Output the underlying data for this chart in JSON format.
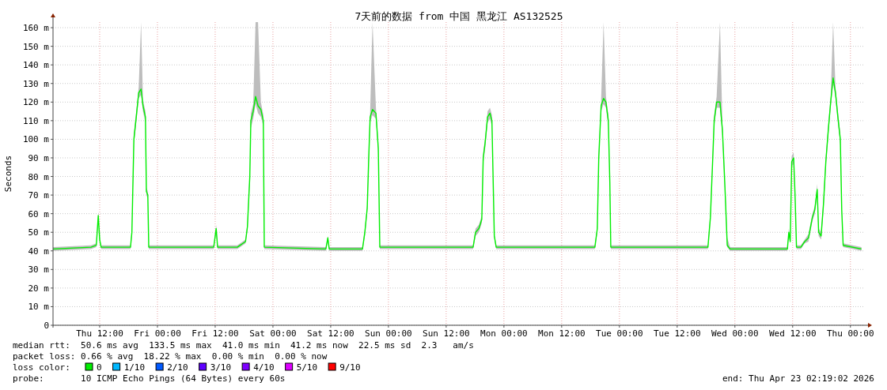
{
  "chart_data": {
    "type": "line",
    "title": "7天前的数据 from 中国 黑龙江 AS132525",
    "ylabel": "Seconds",
    "x": [
      "2026-04-16T02:18",
      "2026-04-16T10:12",
      "2026-04-16T11:18",
      "2026-04-16T11:42",
      "2026-04-16T12:00",
      "2026-04-16T12:18",
      "2026-04-16T16:00",
      "2026-04-16T18:24",
      "2026-04-16T18:42",
      "2026-04-16T19:06",
      "2026-04-16T19:36",
      "2026-04-16T20:06",
      "2026-04-16T20:36",
      "2026-04-16T21:00",
      "2026-04-16T21:30",
      "2026-04-16T21:42",
      "2026-04-16T22:00",
      "2026-04-16T22:12",
      "2026-04-17T11:42",
      "2026-04-17T12:12",
      "2026-04-17T12:30",
      "2026-04-17T16:36",
      "2026-04-17T18:18",
      "2026-04-17T18:42",
      "2026-04-17T19:12",
      "2026-04-17T19:24",
      "2026-04-17T19:54",
      "2026-04-17T20:24",
      "2026-04-17T20:54",
      "2026-04-17T21:30",
      "2026-04-17T22:00",
      "2026-04-17T22:12",
      "2026-04-18T11:00",
      "2026-04-18T11:24",
      "2026-04-18T11:42",
      "2026-04-18T18:36",
      "2026-04-18T19:06",
      "2026-04-18T19:36",
      "2026-04-18T19:54",
      "2026-04-18T20:12",
      "2026-04-18T20:42",
      "2026-04-18T21:24",
      "2026-04-18T21:54",
      "2026-04-18T22:12",
      "2026-04-19T17:36",
      "2026-04-19T18:06",
      "2026-04-19T18:48",
      "2026-04-19T19:24",
      "2026-04-19T19:42",
      "2026-04-19T20:06",
      "2026-04-19T20:36",
      "2026-04-19T21:06",
      "2026-04-19T21:30",
      "2026-04-19T22:00",
      "2026-04-19T22:24",
      "2026-04-20T18:54",
      "2026-04-20T19:24",
      "2026-04-20T19:42",
      "2026-04-20T20:12",
      "2026-04-20T20:42",
      "2026-04-20T21:12",
      "2026-04-20T21:42",
      "2026-04-20T22:00",
      "2026-04-20T22:12",
      "2026-04-21T18:24",
      "2026-04-21T18:54",
      "2026-04-21T19:24",
      "2026-04-21T19:42",
      "2026-04-21T20:12",
      "2026-04-21T20:54",
      "2026-04-21T21:24",
      "2026-04-21T21:42",
      "2026-04-21T22:00",
      "2026-04-21T22:24",
      "2026-04-21T23:00",
      "2026-04-22T05:06",
      "2026-04-22T10:54",
      "2026-04-22T11:12",
      "2026-04-22T11:30",
      "2026-04-22T11:48",
      "2026-04-22T12:12",
      "2026-04-22T12:30",
      "2026-04-22T12:48",
      "2026-04-22T13:42",
      "2026-04-22T14:30",
      "2026-04-22T15:18",
      "2026-04-22T16:06",
      "2026-04-22T16:36",
      "2026-04-22T17:06",
      "2026-04-22T17:24",
      "2026-04-22T17:54",
      "2026-04-22T18:24",
      "2026-04-22T18:54",
      "2026-04-22T19:24",
      "2026-04-22T19:54",
      "2026-04-22T20:24",
      "2026-04-22T20:54",
      "2026-04-22T21:24",
      "2026-04-22T21:54",
      "2026-04-22T22:12",
      "2026-04-22T22:30",
      "2026-04-23T02:18"
    ],
    "series": [
      {
        "name": "0",
        "color": "#00ee00",
        "values": [
          41,
          42,
          43,
          59,
          46,
          42,
          42,
          42,
          50,
          100,
          112,
          125,
          127,
          118,
          112,
          72,
          70,
          42,
          42,
          52,
          42,
          42,
          45,
          53,
          80,
          110,
          115,
          123,
          118,
          116,
          110,
          42,
          41,
          47,
          41,
          41,
          50,
          63,
          90,
          112,
          116,
          114,
          95,
          42,
          42,
          50,
          52,
          57,
          90,
          98,
          112,
          114,
          110,
          48,
          42,
          42,
          52,
          90,
          118,
          122,
          120,
          110,
          77,
          42,
          42,
          58,
          90,
          110,
          120,
          120,
          105,
          88,
          70,
          43,
          41,
          41,
          41,
          50,
          45,
          88,
          90,
          70,
          42,
          42,
          45,
          47,
          58,
          62,
          73,
          50,
          48,
          65,
          88,
          105,
          120,
          133,
          125,
          112,
          100,
          62,
          43,
          41
        ],
        "lower": [
          40,
          41,
          42,
          57,
          45,
          41,
          41,
          41,
          48,
          97,
          109,
          122,
          124,
          115,
          109,
          70,
          68,
          41,
          41,
          50,
          41,
          41,
          44,
          51,
          77,
          106,
          111,
          119,
          114,
          112,
          107,
          41,
          40,
          46,
          40,
          40,
          48,
          61,
          87,
          109,
          113,
          111,
          92,
          41,
          41,
          48,
          50,
          55,
          87,
          95,
          109,
          111,
          107,
          47,
          41,
          41,
          50,
          87,
          115,
          119,
          117,
          107,
          75,
          41,
          41,
          56,
          87,
          107,
          117,
          117,
          102,
          85,
          68,
          42,
          40,
          40,
          40,
          48,
          44,
          85,
          87,
          68,
          41,
          41,
          44,
          45,
          56,
          60,
          70,
          48,
          46,
          62,
          85,
          102,
          117,
          130,
          122,
          109,
          97,
          60,
          42,
          40
        ],
        "upper": [
          42,
          43,
          44,
          61,
          47,
          43,
          43,
          43,
          52,
          103,
          115,
          128,
          163,
          121,
          115,
          74,
          72,
          43,
          43,
          54,
          43,
          43,
          46,
          55,
          83,
          114,
          119,
          163,
          163,
          120,
          113,
          43,
          42,
          48,
          42,
          42,
          52,
          65,
          93,
          115,
          163,
          117,
          98,
          43,
          43,
          52,
          54,
          59,
          93,
          101,
          115,
          117,
          113,
          49,
          43,
          43,
          54,
          93,
          121,
          163,
          123,
          113,
          79,
          43,
          43,
          60,
          93,
          113,
          123,
          163,
          108,
          91,
          72,
          47,
          42,
          42,
          42,
          52,
          46,
          91,
          93,
          72,
          43,
          43,
          46,
          49,
          60,
          64,
          76,
          52,
          50,
          68,
          91,
          108,
          123,
          163,
          128,
          115,
          103,
          64,
          44,
          42
        ]
      },
      {
        "name": "1/10",
        "color": "#00b8ff",
        "values": [
          null,
          null,
          null,
          null,
          null,
          null,
          null,
          null,
          null,
          null,
          null,
          null,
          null,
          null,
          null,
          null,
          null,
          null,
          null,
          null,
          null,
          null,
          null,
          null,
          null,
          null,
          null,
          null,
          null,
          null,
          null,
          null,
          null,
          null,
          null,
          null,
          null,
          null,
          null,
          null,
          null,
          null,
          null,
          null,
          null,
          null,
          null,
          null,
          null,
          null,
          null,
          null,
          null,
          null,
          null,
          null,
          null,
          null,
          null,
          null,
          null,
          null,
          null,
          null,
          null,
          null,
          null,
          null,
          null,
          null,
          null,
          null,
          null,
          null,
          null,
          null,
          null,
          null,
          null,
          null,
          null,
          null,
          null,
          null,
          null,
          null,
          null,
          null,
          null,
          null,
          null,
          null,
          null,
          null,
          null,
          null,
          null,
          null,
          null,
          null,
          null,
          null
        ]
      },
      {
        "name": "2/10",
        "color": "#0059ff",
        "values": [
          null,
          null,
          null,
          null,
          null,
          null,
          null,
          null,
          null,
          null,
          null,
          null,
          null,
          null,
          null,
          null,
          null,
          null,
          null,
          null,
          null,
          null,
          null,
          null,
          null,
          null,
          null,
          null,
          null,
          null,
          null,
          null,
          null,
          null,
          null,
          null,
          null,
          null,
          null,
          null,
          null,
          null,
          null,
          null,
          null,
          null,
          null,
          null,
          null,
          null,
          null,
          null,
          null,
          null,
          null,
          null,
          null,
          null,
          null,
          null,
          null,
          null,
          null,
          null,
          null,
          null,
          null,
          null,
          null,
          null,
          null,
          null,
          null,
          null,
          null,
          null,
          null,
          null,
          null,
          null,
          null,
          null,
          null,
          null,
          null,
          null,
          null,
          null,
          null,
          null,
          null,
          null,
          null,
          null,
          null,
          null,
          null,
          null,
          null,
          null,
          null,
          null
        ]
      },
      {
        "name": "3/10",
        "color": "#5e00ff",
        "values": [
          null,
          null,
          null,
          null,
          null,
          null,
          null,
          null,
          null,
          null,
          null,
          null,
          null,
          null,
          null,
          null,
          null,
          null,
          null,
          null,
          null,
          null,
          null,
          null,
          null,
          null,
          null,
          null,
          null,
          null,
          null,
          null,
          null,
          null,
          null,
          null,
          null,
          null,
          null,
          null,
          null,
          null,
          null,
          null,
          null,
          null,
          null,
          null,
          null,
          null,
          null,
          null,
          null,
          null,
          null,
          null,
          null,
          null,
          null,
          null,
          null,
          null,
          null,
          null,
          null,
          null,
          null,
          null,
          null,
          null,
          null,
          null,
          null,
          null,
          null,
          null,
          null,
          null,
          null,
          null,
          null,
          null,
          null,
          null,
          null,
          null,
          null,
          null,
          null,
          null,
          null,
          null,
          null,
          null,
          null,
          null,
          null,
          null,
          null,
          null,
          null,
          null
        ]
      },
      {
        "name": "4/10",
        "color": "#7e00ff",
        "values": [
          null,
          null,
          null,
          null,
          null,
          null,
          null,
          null,
          null,
          null,
          null,
          null,
          null,
          null,
          null,
          null,
          null,
          null,
          null,
          null,
          null,
          null,
          null,
          null,
          null,
          null,
          null,
          null,
          null,
          null,
          null,
          null,
          null,
          null,
          null,
          null,
          null,
          null,
          null,
          null,
          null,
          null,
          null,
          null,
          null,
          null,
          null,
          null,
          null,
          null,
          null,
          null,
          null,
          null,
          null,
          null,
          null,
          null,
          null,
          null,
          null,
          null,
          null,
          null,
          null,
          null,
          null,
          null,
          null,
          null,
          null,
          null,
          null,
          null,
          null,
          null,
          null,
          null,
          null,
          null,
          null,
          null,
          null,
          null,
          null,
          null,
          null,
          null,
          null,
          null,
          null,
          null,
          null,
          null,
          null,
          null,
          null,
          null,
          null,
          null,
          null,
          null
        ]
      },
      {
        "name": "5/10",
        "color": "#dd00ff",
        "values": [
          null,
          null,
          null,
          null,
          null,
          null,
          null,
          null,
          null,
          null,
          null,
          null,
          null,
          null,
          null,
          null,
          null,
          null,
          null,
          null,
          null,
          null,
          null,
          null,
          null,
          null,
          null,
          null,
          null,
          null,
          null,
          null,
          null,
          null,
          null,
          null,
          null,
          null,
          null,
          null,
          null,
          null,
          null,
          null,
          null,
          null,
          null,
          null,
          null,
          null,
          null,
          null,
          null,
          null,
          null,
          null,
          null,
          null,
          null,
          null,
          null,
          null,
          null,
          null,
          null,
          null,
          null,
          null,
          null,
          null,
          null,
          null,
          null,
          null,
          null,
          null,
          null,
          null,
          null,
          null,
          null,
          null,
          null,
          null,
          null,
          null,
          null,
          null,
          null,
          null,
          null,
          null,
          null,
          null,
          null,
          null,
          null,
          null,
          null,
          null,
          null,
          null
        ]
      },
      {
        "name": "9/10",
        "color": "#ff0000",
        "values": [
          null,
          null,
          null,
          null,
          null,
          null,
          null,
          null,
          null,
          null,
          null,
          null,
          null,
          null,
          null,
          null,
          null,
          null,
          null,
          null,
          null,
          null,
          null,
          null,
          null,
          null,
          null,
          null,
          null,
          null,
          null,
          null,
          null,
          null,
          null,
          null,
          null,
          null,
          null,
          null,
          null,
          null,
          null,
          null,
          null,
          null,
          null,
          null,
          null,
          null,
          null,
          null,
          null,
          null,
          null,
          null,
          null,
          null,
          null,
          null,
          null,
          null,
          null,
          null,
          null,
          null,
          null,
          null,
          null,
          null,
          null,
          null,
          null,
          null,
          null,
          null,
          null,
          null,
          null,
          null,
          null,
          null,
          null,
          null,
          null,
          null,
          null,
          null,
          null,
          null,
          null,
          null,
          null,
          null,
          null,
          null,
          null,
          null,
          null,
          null,
          null,
          null
        ]
      }
    ],
    "xlim": [
      "2026-04-16T02:18",
      "2026-04-23T03:00"
    ],
    "xticks": [
      {
        "value": "2026-04-16T12:00",
        "label": "Thu 12:00"
      },
      {
        "value": "2026-04-17T00:00",
        "label": "Fri 00:00"
      },
      {
        "value": "2026-04-17T12:00",
        "label": "Fri 12:00"
      },
      {
        "value": "2026-04-18T00:00",
        "label": "Sat 00:00"
      },
      {
        "value": "2026-04-18T12:00",
        "label": "Sat 12:00"
      },
      {
        "value": "2026-04-19T00:00",
        "label": "Sun 00:00"
      },
      {
        "value": "2026-04-19T12:00",
        "label": "Sun 12:00"
      },
      {
        "value": "2026-04-20T00:00",
        "label": "Mon 00:00"
      },
      {
        "value": "2026-04-20T12:00",
        "label": "Mon 12:00"
      },
      {
        "value": "2026-04-21T00:00",
        "label": "Tue 00:00"
      },
      {
        "value": "2026-04-21T12:00",
        "label": "Tue 12:00"
      },
      {
        "value": "2026-04-22T00:00",
        "label": "Wed 00:00"
      },
      {
        "value": "2026-04-22T12:00",
        "label": "Wed 12:00"
      },
      {
        "value": "2026-04-23T00:00",
        "label": "Thu 00:00"
      }
    ],
    "ylim": [
      0,
      163
    ],
    "yticks": [
      0,
      {
        "value": 10,
        "label": "10 m"
      },
      {
        "value": 20,
        "label": "20 m"
      },
      {
        "value": 30,
        "label": "30 m"
      },
      {
        "value": 40,
        "label": "40 m"
      },
      {
        "value": 50,
        "label": "50 m"
      },
      {
        "value": 60,
        "label": "60 m"
      },
      {
        "value": 70,
        "label": "70 m"
      },
      {
        "value": 80,
        "label": "80 m"
      },
      {
        "value": 90,
        "label": "90 m"
      },
      {
        "value": 100,
        "label": "100 m"
      },
      {
        "value": 110,
        "label": "110 m"
      },
      {
        "value": 120,
        "label": "120 m"
      },
      {
        "value": 130,
        "label": "130 m"
      },
      {
        "value": 140,
        "label": "140 m"
      },
      {
        "value": 150,
        "label": "150 m"
      },
      {
        "value": 160,
        "label": "160 m"
      }
    ],
    "grid": true,
    "legend": "bottom left",
    "legend_title": "loss color:",
    "annotations": [
      "median rtt:  50.6 ms avg  133.5 ms max  41.0 ms min  41.2 ms now  22.5 ms sd  2.3   am/s",
      "packet loss: 0.66 % avg  18.22 % max  0.00 % min  0.00 % now",
      "probe:       10 ICMP Echo Pings (64 Bytes) every 60s",
      "end: Thu Apr 23 02:19:02 2026"
    ]
  }
}
